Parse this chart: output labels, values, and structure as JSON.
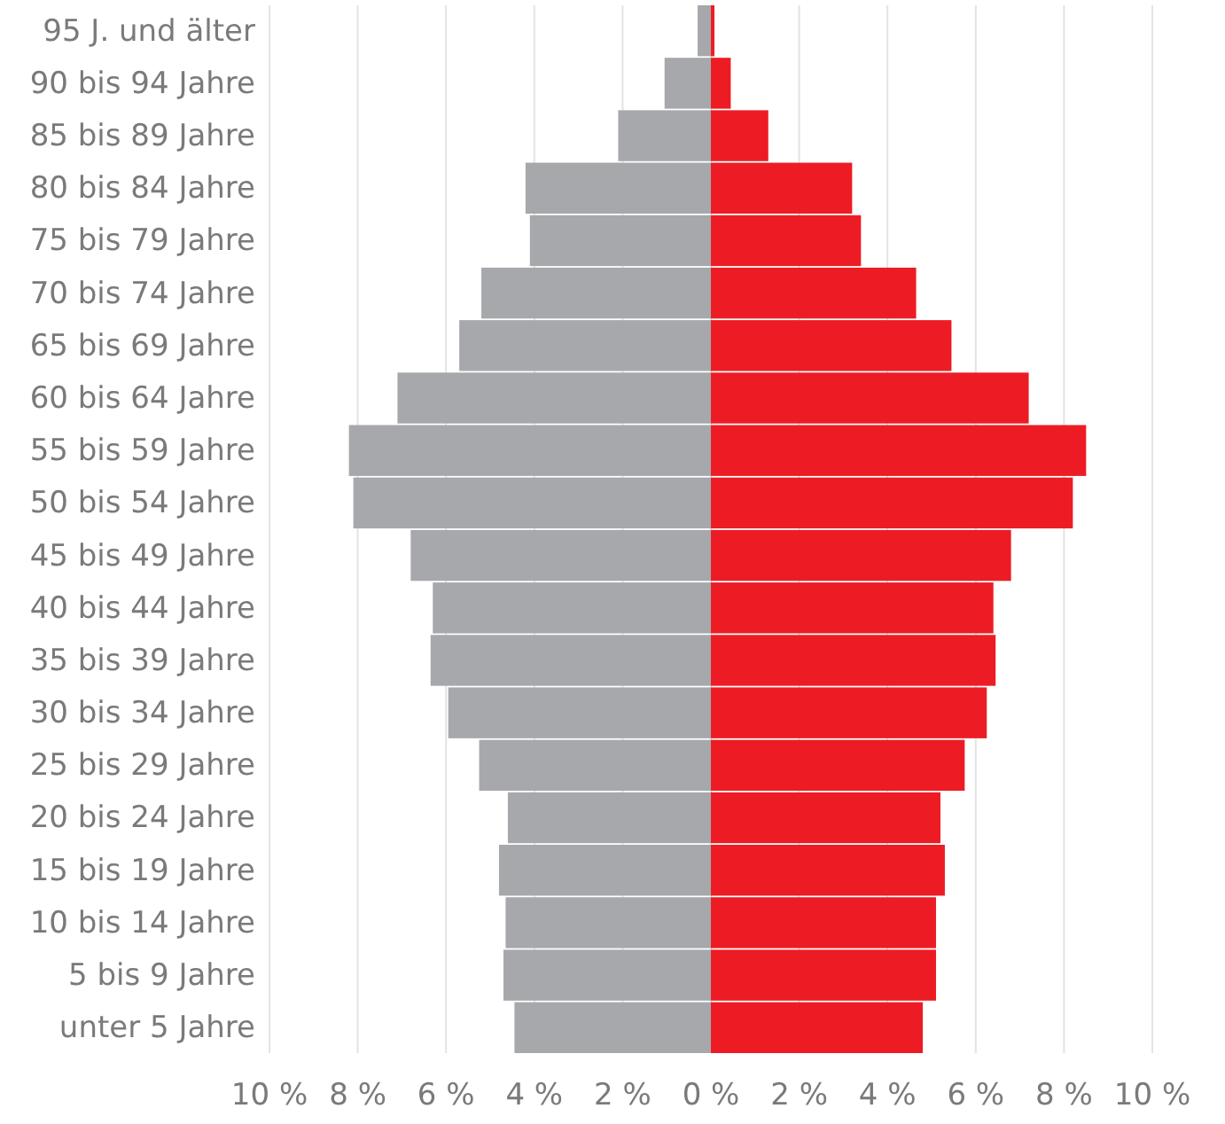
{
  "chart_data": {
    "type": "bar",
    "orientation": "horizontal",
    "categories": [
      "95 J. und älter",
      "90 bis 94 Jahre",
      "85 bis 89 Jahre",
      "80 bis 84 Jahre",
      "75 bis 79 Jahre",
      "70 bis 74 Jahre",
      "65 bis 69 Jahre",
      "60 bis 64 Jahre",
      "55 bis 59 Jahre",
      "50 bis 54 Jahre",
      "45 bis 49 Jahre",
      "40 bis 44 Jahre",
      "35 bis 39 Jahre",
      "30 bis 34 Jahre",
      "25 bis 29 Jahre",
      "20 bis 24 Jahre",
      "15 bis 19 Jahre",
      "10 bis 14 Jahre",
      "5 bis 9 Jahre",
      "unter 5 Jahre"
    ],
    "series": [
      {
        "color": "#a7a8ab",
        "values": [
          -0.3,
          -1.05,
          -2.1,
          -4.2,
          -4.1,
          -5.2,
          -5.7,
          -7.1,
          -8.2,
          -8.1,
          -6.8,
          -6.3,
          -6.35,
          -5.95,
          -5.25,
          -4.6,
          -4.8,
          -4.65,
          -4.7,
          -4.45
        ]
      },
      {
        "color": "#ed1c24",
        "values": [
          0.08,
          0.45,
          1.3,
          3.2,
          3.4,
          4.65,
          5.45,
          7.2,
          8.5,
          8.2,
          6.8,
          6.4,
          6.45,
          6.25,
          5.75,
          5.2,
          5.3,
          5.1,
          5.1,
          4.8
        ]
      }
    ],
    "xlim": [
      -10,
      10
    ],
    "xticks": [
      {
        "value": -10,
        "label": "10 %"
      },
      {
        "value": -8,
        "label": "8 %"
      },
      {
        "value": -6,
        "label": "6 %"
      },
      {
        "value": -4,
        "label": "4 %"
      },
      {
        "value": -2,
        "label": "2 %"
      },
      {
        "value": 0,
        "label": "0 %"
      },
      {
        "value": 2,
        "label": "2 %"
      },
      {
        "value": 4,
        "label": "4 %"
      },
      {
        "value": 6,
        "label": "6 %"
      },
      {
        "value": 8,
        "label": "8 %"
      },
      {
        "value": 10,
        "label": "10 %"
      }
    ],
    "grid": "x",
    "stacked": true,
    "legend": false
  }
}
